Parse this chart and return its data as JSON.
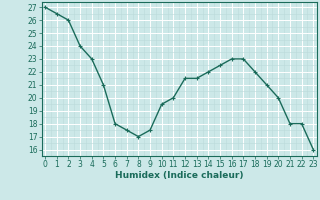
{
  "x": [
    0,
    1,
    2,
    3,
    4,
    5,
    6,
    7,
    8,
    9,
    10,
    11,
    12,
    13,
    14,
    15,
    16,
    17,
    18,
    19,
    20,
    21,
    22,
    23
  ],
  "y": [
    27.0,
    26.5,
    26.0,
    24.0,
    23.0,
    21.0,
    18.0,
    17.5,
    17.0,
    17.5,
    19.5,
    20.0,
    21.5,
    21.5,
    22.0,
    22.5,
    23.0,
    23.0,
    22.0,
    21.0,
    20.0,
    18.0,
    18.0,
    16.0
  ],
  "xlabel": "Humidex (Indice chaleur)",
  "ylim": [
    15.5,
    27.4
  ],
  "yticks": [
    16,
    17,
    18,
    19,
    20,
    21,
    22,
    23,
    24,
    25,
    26,
    27
  ],
  "xticks": [
    0,
    1,
    2,
    3,
    4,
    5,
    6,
    7,
    8,
    9,
    10,
    11,
    12,
    13,
    14,
    15,
    16,
    17,
    18,
    19,
    20,
    21,
    22,
    23
  ],
  "xlim": [
    -0.3,
    23.3
  ],
  "line_color": "#1a6b5a",
  "marker": "+",
  "bg_color": "#cce8e8",
  "grid_major_color": "#ffffff",
  "grid_minor_color": "#bbdada",
  "axis_color": "#1a6b5a",
  "label_color": "#1a6b5a",
  "tick_fontsize": 5.5,
  "xlabel_fontsize": 6.5,
  "linewidth": 1.0,
  "markersize": 3.5,
  "markeredgewidth": 0.8
}
